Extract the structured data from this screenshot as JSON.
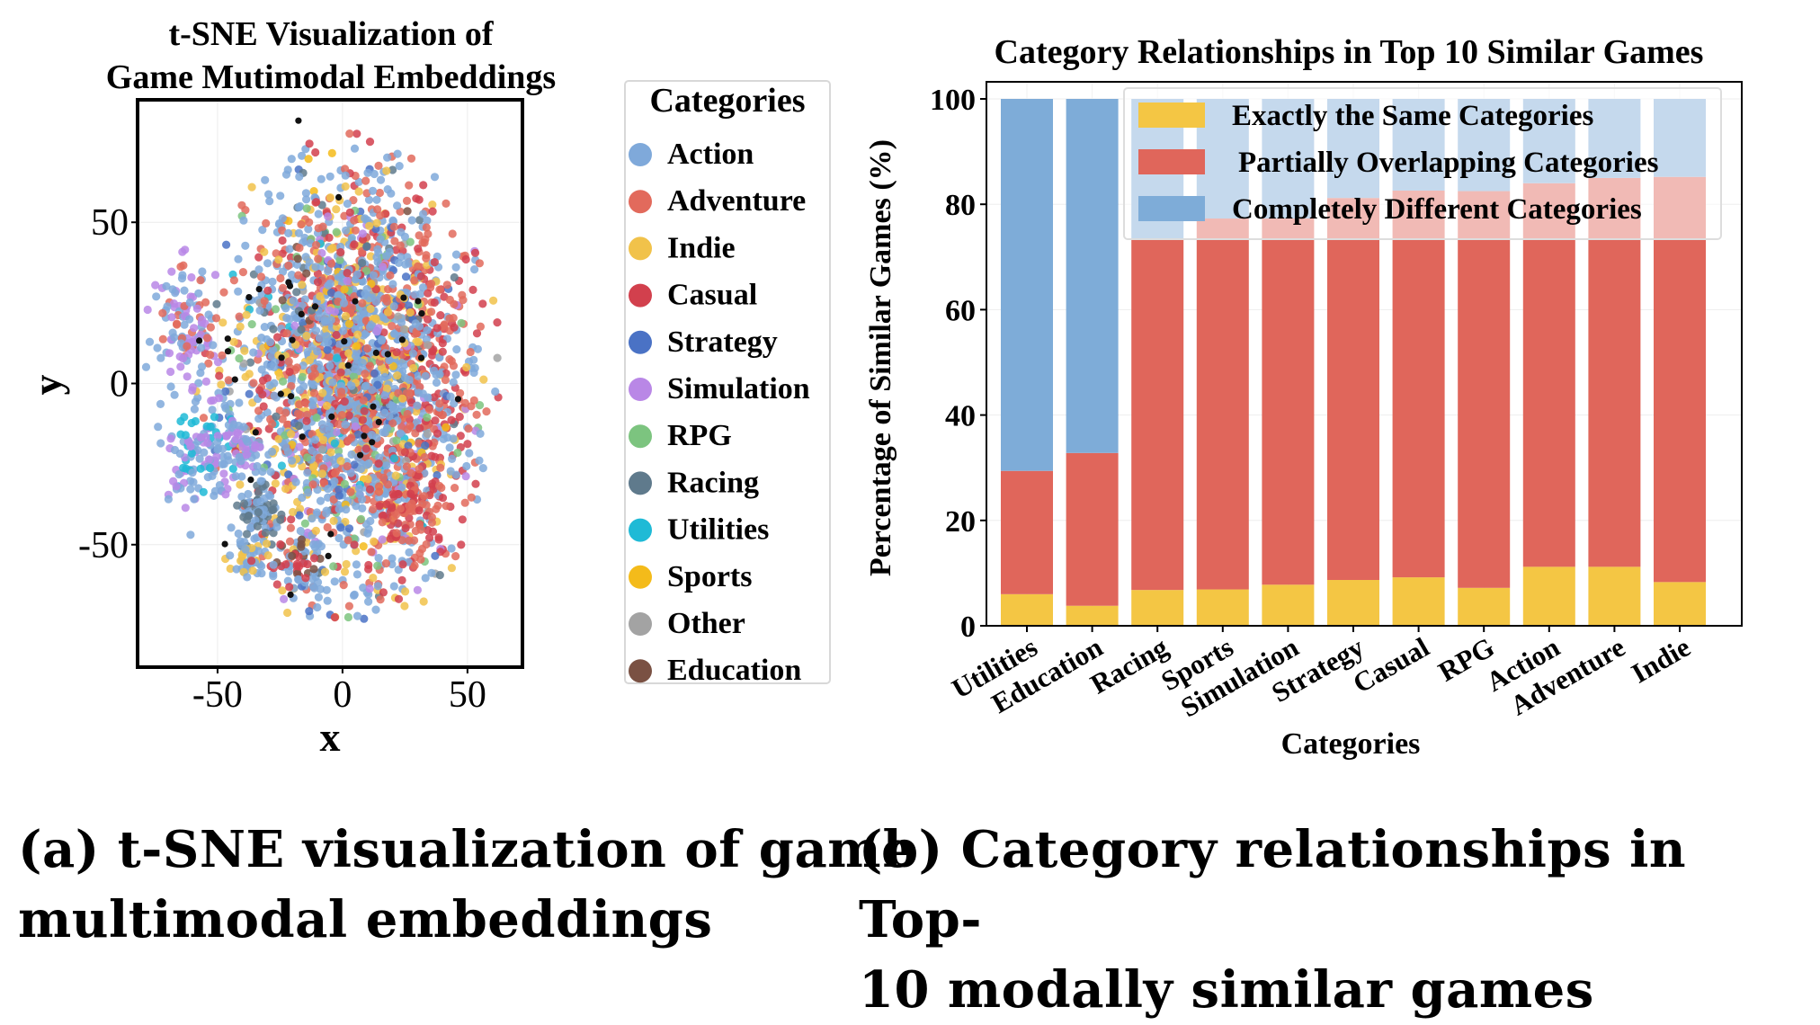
{
  "chart_data": [
    {
      "type": "scatter",
      "title_line1": "t-SNE Visualization of",
      "title_line2": "Game Mutimodal Embeddings",
      "xlabel": "x",
      "ylabel": "y",
      "xlim": [
        -82,
        72
      ],
      "ylim": [
        -88,
        88
      ],
      "xticks": [
        -50,
        0,
        50
      ],
      "yticks": [
        50,
        0,
        -50
      ],
      "xtick_labels": [
        "-50",
        "0",
        "50"
      ],
      "ytick_labels": [
        "50",
        "0",
        "-50"
      ],
      "legend_title": "Categories",
      "categories": [
        {
          "name": "Action",
          "color": "#7fa9da"
        },
        {
          "name": "Adventure",
          "color": "#e26a5c"
        },
        {
          "name": "Indie",
          "color": "#f1c24a"
        },
        {
          "name": "Casual",
          "color": "#d2404d"
        },
        {
          "name": "Strategy",
          "color": "#4a72c5"
        },
        {
          "name": "Simulation",
          "color": "#b987e6"
        },
        {
          "name": "RPG",
          "color": "#7cc47f"
        },
        {
          "name": "Racing",
          "color": "#5f7a8c"
        },
        {
          "name": "Utilities",
          "color": "#1fbad6"
        },
        {
          "name": "Sports",
          "color": "#f4bb1a"
        },
        {
          "name": "Other",
          "color": "#a3a3a3"
        },
        {
          "name": "Education",
          "color": "#7a5143"
        }
      ]
    },
    {
      "type": "bar",
      "stacked": true,
      "title": "Category Relationships in Top 10 Similar Games",
      "xlabel": "Categories",
      "ylabel": "Percentage of Similar Games (%)",
      "ylim": [
        0,
        100
      ],
      "yticks": [
        "0",
        "20",
        "40",
        "60",
        "80",
        "100"
      ],
      "categories": [
        "Utilities",
        "Education",
        "Racing",
        "Sports",
        "Simulation",
        "Strategy",
        "Casual",
        "RPG",
        "Action",
        "Adventure",
        "Indie"
      ],
      "series": [
        {
          "name": "Exactly the Same Categories",
          "color": "#f4c644",
          "values": [
            6,
            3.8,
            6.8,
            6.9,
            7.8,
            8.7,
            9.2,
            7.2,
            11.2,
            11.2,
            8.3
          ]
        },
        {
          "name": "Partially Overlapping Categories",
          "color": "#e0665b",
          "values": [
            23.4,
            29,
            66.7,
            70.4,
            69.5,
            72.5,
            73.4,
            75.3,
            72.8,
            73.8,
            76.9
          ]
        },
        {
          "name": "Completely Different Categories",
          "color": "#7eacd8",
          "values": [
            70.6,
            67.2,
            26.5,
            22.7,
            22.7,
            18.8,
            17.4,
            17.5,
            16,
            15,
            14.8
          ]
        }
      ]
    }
  ],
  "captions": {
    "a_line1": "(a) t-SNE visualization of game",
    "a_line2": "multimodal embeddings",
    "b_line1": "(b) Category relationships in Top-",
    "b_line2": "10 modally similar games"
  }
}
